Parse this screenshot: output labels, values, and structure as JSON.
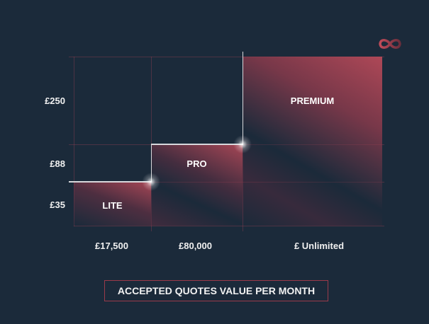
{
  "logo": {
    "icon": "infinity-icon",
    "color": "#b84a58"
  },
  "y_axis": {
    "labels": [
      "£250",
      "£88",
      "£35"
    ]
  },
  "x_axis": {
    "labels": [
      "£17,500",
      "£80,000",
      "£ Unlimited"
    ],
    "title": "ACCEPTED QUOTES VALUE PER MONTH"
  },
  "tiers": [
    {
      "name": "LITE",
      "price": "£35",
      "quote_limit": "£17,500"
    },
    {
      "name": "PRO",
      "price": "£88",
      "quote_limit": "£80,000"
    },
    {
      "name": "PREMIUM",
      "price": "£250",
      "quote_limit": "£ Unlimited"
    }
  ],
  "colors": {
    "background": "#1b2a3a",
    "accent": "#b84a58",
    "grid": "#7a3a4a"
  }
}
